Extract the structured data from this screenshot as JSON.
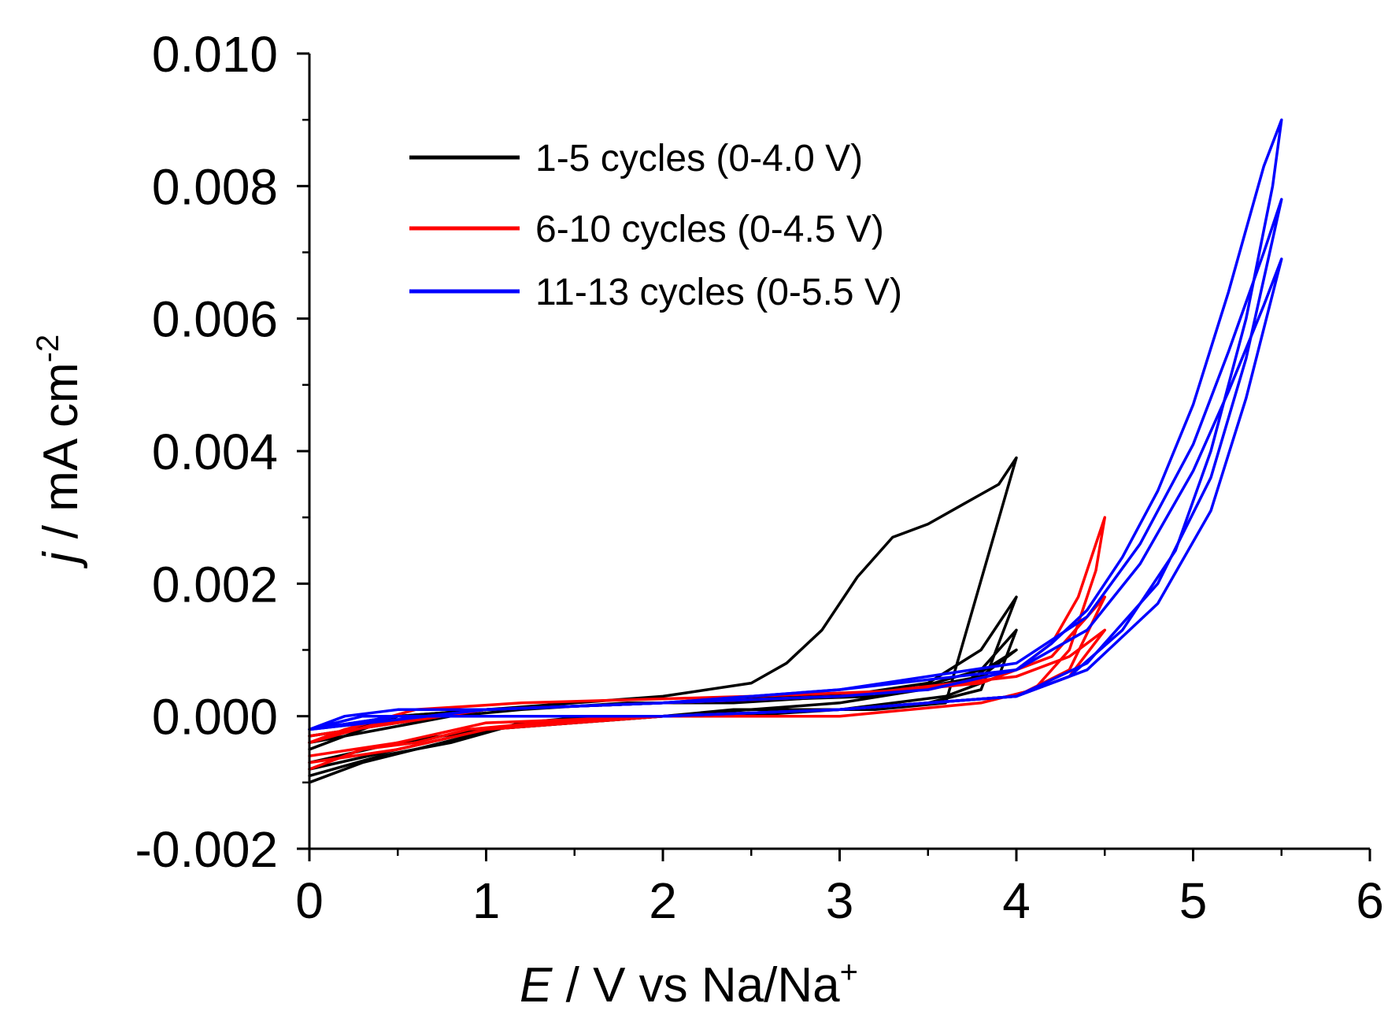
{
  "chart_data": {
    "type": "line",
    "title": "",
    "xlabel": {
      "italic": "E",
      "rest": " / V vs Na/Na",
      "sup": "+"
    },
    "ylabel": {
      "italic": "j",
      "rest": " / mA cm",
      "sup": "-2"
    },
    "xlim": [
      0,
      6
    ],
    "ylim": [
      -0.002,
      0.01
    ],
    "x_ticks": [
      0,
      1,
      2,
      3,
      4,
      5,
      6
    ],
    "x_tick_labels": [
      "0",
      "1",
      "2",
      "3",
      "4",
      "5",
      "6"
    ],
    "y_ticks": [
      -0.002,
      0.0,
      0.002,
      0.004,
      0.006,
      0.008,
      0.01
    ],
    "y_tick_labels": [
      "-0.002",
      "0.000",
      "0.002",
      "0.004",
      "0.006",
      "0.008",
      "0.010"
    ],
    "grid": false,
    "legend_position": "top-center",
    "series": [
      {
        "name": "1-5 cycles (0-4.0 V)",
        "color": "#000000",
        "cycles": [
          {
            "x": [
              0.0,
              0.3,
              0.6,
              0.9,
              1.2,
              1.6,
              2.0,
              2.4,
              2.8,
              3.2,
              3.6,
              4.0,
              3.9,
              3.7,
              3.5,
              3.3,
              3.1,
              2.9,
              2.7,
              2.5,
              2.0,
              1.5,
              1.0,
              0.5,
              0.2,
              0.0
            ],
            "y": [
              -0.001,
              -0.0007,
              -0.0005,
              -0.0003,
              -0.0001,
              0.0,
              0.0,
              0.0001,
              0.0001,
              0.0001,
              0.0002,
              0.0039,
              0.0035,
              0.0032,
              0.0029,
              0.0027,
              0.0021,
              0.0013,
              0.0008,
              0.0005,
              0.0003,
              0.0002,
              0.0001,
              0.0,
              -0.0003,
              -0.0005
            ]
          },
          {
            "x": [
              0.0,
              0.4,
              0.8,
              1.2,
              1.8,
              2.4,
              3.0,
              3.5,
              3.8,
              4.0,
              3.8,
              3.5,
              3.0,
              2.4,
              1.8,
              1.2,
              0.8,
              0.4,
              0.0
            ],
            "y": [
              -0.0009,
              -0.0006,
              -0.0004,
              -0.0001,
              0.0,
              0.0,
              0.0001,
              0.0002,
              0.0004,
              0.0018,
              0.001,
              0.0005,
              0.0003,
              0.0002,
              0.0002,
              0.0001,
              0.0,
              -0.0002,
              -0.0004
            ]
          },
          {
            "x": [
              0.0,
              0.5,
              1.0,
              2.0,
              3.0,
              3.6,
              3.9,
              4.0,
              3.8,
              3.4,
              2.8,
              2.0,
              1.0,
              0.5,
              0.0
            ],
            "y": [
              -0.0008,
              -0.0005,
              -0.0002,
              0.0,
              0.0001,
              0.0003,
              0.0006,
              0.0013,
              0.0007,
              0.0004,
              0.0003,
              0.0002,
              0.0001,
              0.0,
              -0.0004
            ]
          },
          {
            "x": [
              0.0,
              0.5,
              1.0,
              2.0,
              3.0,
              3.7,
              4.0,
              3.8,
              3.2,
              2.0,
              1.0,
              0.0
            ],
            "y": [
              -0.0007,
              -0.0004,
              -0.0002,
              0.0,
              0.0002,
              0.0005,
              0.001,
              0.0006,
              0.0003,
              0.0002,
              0.0001,
              -0.0003
            ]
          }
        ]
      },
      {
        "name": "6-10 cycles (0-4.5 V)",
        "color": "#ff0000",
        "cycles": [
          {
            "x": [
              0.0,
              0.3,
              0.6,
              0.9,
              1.3,
              2.0,
              3.0,
              3.8,
              4.1,
              4.3,
              4.45,
              4.5,
              4.45,
              4.35,
              4.2,
              4.0,
              3.5,
              2.5,
              1.2,
              0.6,
              0.2,
              0.0
            ],
            "y": [
              -0.0008,
              -0.0005,
              -0.0004,
              -0.0002,
              -0.0001,
              0.0,
              0.0,
              0.0002,
              0.0004,
              0.001,
              0.0022,
              0.003,
              0.0026,
              0.0018,
              0.0011,
              0.0007,
              0.0004,
              0.0003,
              0.0002,
              0.0001,
              -0.0002,
              -0.0004
            ]
          },
          {
            "x": [
              0.0,
              0.5,
              1.0,
              2.0,
              3.0,
              4.0,
              4.3,
              4.5,
              4.4,
              4.2,
              3.8,
              3.0,
              2.0,
              1.0,
              0.4,
              0.0
            ],
            "y": [
              -0.0007,
              -0.0005,
              -0.0002,
              0.0,
              0.0001,
              0.0003,
              0.0007,
              0.0018,
              0.0015,
              0.0009,
              0.0005,
              0.0003,
              0.0002,
              0.0001,
              -0.0001,
              -0.0004
            ]
          },
          {
            "x": [
              0.0,
              0.5,
              1.0,
              2.0,
              3.0,
              4.0,
              4.3,
              4.5,
              4.3,
              4.0,
              3.0,
              2.0,
              1.0,
              0.0
            ],
            "y": [
              -0.0006,
              -0.0004,
              -0.0001,
              0.0,
              0.0001,
              0.0003,
              0.0006,
              0.0013,
              0.0009,
              0.0006,
              0.0003,
              0.0002,
              0.0001,
              -0.0003
            ]
          }
        ]
      },
      {
        "name": "11-13 cycles (0-5.5 V)",
        "color": "#0000ff",
        "cycles": [
          {
            "x": [
              0.0,
              0.3,
              0.6,
              1.0,
              1.5,
              2.0,
              3.0,
              4.0,
              4.3,
              4.6,
              4.9,
              5.1,
              5.3,
              5.45,
              5.5,
              5.4,
              5.2,
              5.0,
              4.8,
              4.6,
              4.4,
              4.2,
              4.0,
              3.5,
              3.0,
              2.0,
              1.0,
              0.5,
              0.2,
              0.0
            ],
            "y": [
              -0.0002,
              0.0,
              0.0,
              0.0,
              0.0,
              0.0,
              0.0001,
              0.0003,
              0.0006,
              0.0013,
              0.0025,
              0.004,
              0.006,
              0.008,
              0.009,
              0.0083,
              0.0064,
              0.0047,
              0.0034,
              0.0024,
              0.0016,
              0.0011,
              0.0007,
              0.0004,
              0.0003,
              0.0002,
              0.0001,
              0.0001,
              0.0,
              -0.0002
            ]
          },
          {
            "x": [
              0.0,
              0.5,
              1.0,
              2.0,
              3.0,
              4.0,
              4.4,
              4.8,
              5.1,
              5.3,
              5.5,
              5.4,
              5.2,
              5.0,
              4.7,
              4.4,
              4.0,
              3.0,
              2.0,
              1.0,
              0.0
            ],
            "y": [
              -0.0002,
              0.0,
              0.0,
              0.0,
              0.0001,
              0.0003,
              0.0008,
              0.002,
              0.0036,
              0.0054,
              0.0078,
              0.007,
              0.0055,
              0.0041,
              0.0026,
              0.0015,
              0.0008,
              0.0004,
              0.0002,
              0.0001,
              -0.0002
            ]
          },
          {
            "x": [
              0.0,
              0.5,
              1.0,
              2.0,
              3.0,
              4.0,
              4.4,
              4.8,
              5.1,
              5.3,
              5.5,
              5.4,
              5.2,
              5.0,
              4.7,
              4.4,
              4.0,
              3.0,
              2.0,
              1.0,
              0.0
            ],
            "y": [
              -0.0002,
              0.0,
              0.0,
              0.0,
              0.0001,
              0.0003,
              0.0007,
              0.0017,
              0.0031,
              0.0048,
              0.0069,
              0.0062,
              0.0049,
              0.0037,
              0.0023,
              0.0013,
              0.0007,
              0.0004,
              0.0002,
              0.0001,
              -0.0002
            ]
          }
        ]
      }
    ]
  }
}
